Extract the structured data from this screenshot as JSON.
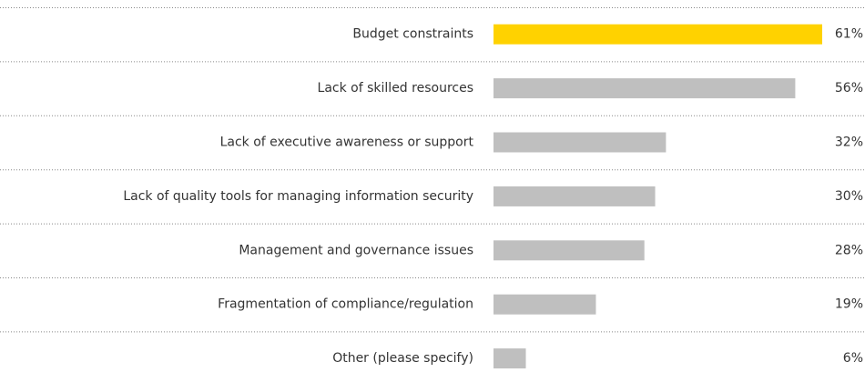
{
  "chart_data": {
    "type": "barh",
    "categories": [
      "Budget constraints",
      "Lack of skilled resources",
      "Lack of executive awareness or support",
      "Lack of quality tools for managing information security",
      "Management and governance issues",
      "Fragmentation of compliance/regulation",
      "Other (please specify)"
    ],
    "values": [
      61,
      56,
      32,
      30,
      28,
      19,
      6
    ],
    "value_labels": [
      "61%",
      "56%",
      "32%",
      "30%",
      "28%",
      "19%",
      "6%"
    ],
    "colors": [
      "#ffd200",
      "#bfbfbf",
      "#bfbfbf",
      "#bfbfbf",
      "#bfbfbf",
      "#bfbfbf",
      "#bfbfbf"
    ]
  }
}
